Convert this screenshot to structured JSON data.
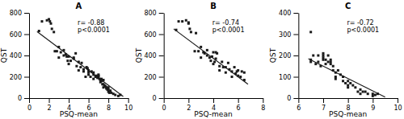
{
  "chart_data": [
    {
      "type": "scatter",
      "title": "A",
      "x_label": "PSQ-mean",
      "y_label": "QST",
      "xlim": [
        0,
        10
      ],
      "ylim": [
        0,
        800
      ],
      "xticks": [
        0,
        2,
        4,
        6,
        8,
        10
      ],
      "yticks": [
        0,
        200,
        400,
        600,
        800
      ],
      "annotations": [
        "r= -0.88",
        "p<0.0001"
      ],
      "series": [
        {
          "type": "scatter",
          "color": "#1a1a1a",
          "marker": "square",
          "x": [
            1.0,
            1.3,
            1.8,
            2.0,
            2.1,
            2.2,
            2.3,
            2.5,
            2.6,
            2.8,
            3.0,
            3.0,
            3.2,
            3.5,
            3.5,
            3.7,
            3.8,
            3.9,
            4.0,
            4.0,
            4.2,
            4.5,
            4.5,
            4.7,
            4.8,
            5.0,
            5.0,
            5.2,
            5.3,
            5.5,
            5.5,
            5.7,
            5.8,
            5.9,
            6.0,
            6.0,
            6.0,
            6.2,
            6.3,
            6.5,
            6.5,
            6.5,
            6.7,
            6.8,
            6.9,
            7.0,
            7.0,
            7.0,
            7.1,
            7.2,
            7.2,
            7.3,
            7.3,
            7.4,
            7.5,
            7.5,
            7.5,
            7.6,
            7.7,
            7.8,
            7.8,
            7.9,
            8.0,
            8.0,
            8.0,
            8.1,
            8.2,
            8.3,
            8.5,
            8.7,
            9.0,
            9.2
          ],
          "values": [
            630,
            720,
            730,
            740,
            720,
            700,
            650,
            620,
            440,
            440,
            380,
            480,
            430,
            450,
            400,
            410,
            390,
            350,
            390,
            320,
            350,
            380,
            370,
            420,
            300,
            260,
            340,
            290,
            330,
            270,
            250,
            200,
            290,
            280,
            240,
            220,
            260,
            200,
            250,
            240,
            220,
            180,
            200,
            210,
            190,
            200,
            210,
            220,
            180,
            150,
            170,
            160,
            180,
            130,
            170,
            130,
            100,
            120,
            110,
            100,
            90,
            80,
            100,
            80,
            60,
            50,
            70,
            50,
            40,
            30,
            20,
            30
          ]
        },
        {
          "type": "line",
          "color": "#1a1a1a",
          "x": [
            0.8,
            9.5
          ],
          "values": [
            625,
            15
          ]
        }
      ]
    },
    {
      "type": "scatter",
      "title": "B",
      "x_label": "PSQ-mean",
      "y_label": "QST",
      "xlim": [
        0,
        8
      ],
      "ylim": [
        0,
        800
      ],
      "xticks": [
        0,
        2,
        4,
        6,
        8
      ],
      "yticks": [
        0,
        200,
        400,
        600,
        800
      ],
      "annotations": [
        "r= -0.74",
        "p<0.0001"
      ],
      "series": [
        {
          "type": "scatter",
          "color": "#1a1a1a",
          "marker": "square",
          "x": [
            1.0,
            1.2,
            1.5,
            1.8,
            2.0,
            2.0,
            2.1,
            2.2,
            2.5,
            2.6,
            2.8,
            3.0,
            3.0,
            3.2,
            3.3,
            3.5,
            3.5,
            3.7,
            3.8,
            3.9,
            4.0,
            4.0,
            4.1,
            4.2,
            4.2,
            4.3,
            4.5,
            4.5,
            4.7,
            4.8,
            5.0,
            5.0,
            5.2,
            5.3,
            5.5,
            5.5,
            5.7,
            5.8,
            5.9,
            6.0,
            6.0,
            6.2,
            6.3,
            6.5,
            6.5
          ],
          "values": [
            640,
            720,
            720,
            730,
            710,
            700,
            650,
            620,
            440,
            610,
            440,
            380,
            480,
            430,
            420,
            450,
            400,
            380,
            350,
            390,
            320,
            430,
            340,
            430,
            370,
            420,
            300,
            260,
            340,
            290,
            240,
            290,
            330,
            270,
            250,
            200,
            290,
            230,
            250,
            210,
            260,
            200,
            250,
            240,
            170
          ]
        },
        {
          "type": "line",
          "color": "#1a1a1a",
          "x": [
            0.8,
            6.8
          ],
          "values": [
            650,
            130
          ]
        }
      ]
    },
    {
      "type": "scatter",
      "title": "C",
      "x_label": "PSQ-mean",
      "y_label": "QST",
      "xlim": [
        6,
        10
      ],
      "ylim": [
        0,
        400
      ],
      "xticks": [
        6,
        7,
        8,
        9,
        10
      ],
      "yticks": [
        0,
        100,
        200,
        300,
        400
      ],
      "annotations": [
        "r= -0.72",
        "p<0.0001"
      ],
      "series": [
        {
          "type": "scatter",
          "color": "#1a1a1a",
          "marker": "square",
          "x": [
            6.5,
            6.5,
            6.6,
            6.7,
            6.8,
            6.8,
            6.9,
            7.0,
            7.0,
            7.0,
            7.0,
            7.1,
            7.1,
            7.2,
            7.2,
            7.3,
            7.3,
            7.3,
            7.4,
            7.4,
            7.5,
            7.5,
            7.5,
            7.6,
            7.7,
            7.8,
            7.8,
            7.9,
            8.0,
            8.0,
            8.0,
            8.1,
            8.2,
            8.3,
            8.4,
            8.5,
            8.5,
            8.6,
            8.7,
            8.8,
            9.0,
            9.0,
            9.1,
            9.2,
            6.5
          ],
          "values": [
            170,
            180,
            200,
            160,
            170,
            200,
            150,
            180,
            190,
            200,
            210,
            160,
            180,
            170,
            200,
            160,
            180,
            170,
            150,
            130,
            120,
            100,
            90,
            130,
            110,
            100,
            80,
            70,
            80,
            60,
            50,
            70,
            60,
            50,
            30,
            40,
            20,
            30,
            30,
            20,
            20,
            10,
            15,
            20,
            310
          ]
        },
        {
          "type": "line",
          "color": "#1a1a1a",
          "x": [
            6.4,
            9.5
          ],
          "values": [
            185,
            5
          ]
        }
      ]
    }
  ]
}
